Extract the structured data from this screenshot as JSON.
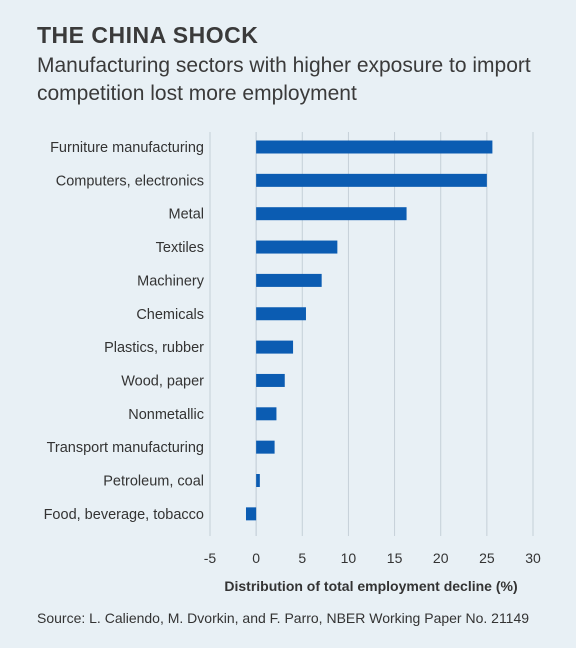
{
  "title": "THE CHINA SHOCK",
  "subtitle": "Manufacturing sectors with higher exposure to import competition lost more employment",
  "source": "Source: L. Caliendo, M. Dvorkin, and F. Parro, NBER Working Paper No. 21149",
  "chart_data": {
    "type": "bar",
    "orientation": "horizontal",
    "categories": [
      "Furniture manufacturing",
      "Computers, electronics",
      "Metal",
      "Textiles",
      "Machinery",
      "Chemicals",
      "Plastics, rubber",
      "Wood, paper",
      "Nonmetallic",
      "Transport manufacturing",
      "Petroleum, coal",
      "Food, beverage, tobacco"
    ],
    "values": [
      25.6,
      25.0,
      16.3,
      8.8,
      7.1,
      5.4,
      4.0,
      3.1,
      2.2,
      2.0,
      0.4,
      -1.1
    ],
    "xlabel": "Distribution of total employment decline (%)",
    "ylabel": "",
    "xlim": [
      -5,
      30
    ],
    "xticks": [
      -5,
      0,
      5,
      10,
      15,
      20,
      25,
      30
    ],
    "grid": "vertical",
    "bar_color": "#0b5cb2",
    "grid_color": "#c5d0d8"
  }
}
